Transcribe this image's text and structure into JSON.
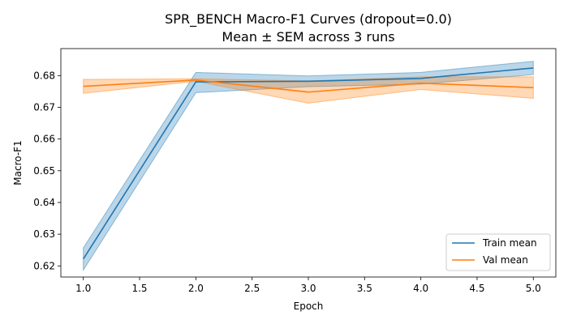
{
  "chart_data": {
    "type": "line",
    "title": "SPR_BENCH Macro-F1 Curves (dropout=0.0)",
    "subtitle": "Mean ± SEM across 3 runs",
    "xlabel": "Epoch",
    "ylabel": "Macro-F1",
    "xlim": [
      0.8,
      5.2
    ],
    "ylim": [
      0.6165,
      0.6885
    ],
    "xticks": [
      1.0,
      1.5,
      2.0,
      2.5,
      3.0,
      3.5,
      4.0,
      4.5,
      5.0
    ],
    "xtick_labels": [
      "1.0",
      "1.5",
      "2.0",
      "2.5",
      "3.0",
      "3.5",
      "4.0",
      "4.5",
      "5.0"
    ],
    "yticks": [
      0.62,
      0.63,
      0.64,
      0.65,
      0.66,
      0.67,
      0.68
    ],
    "ytick_labels": [
      "0.62",
      "0.63",
      "0.64",
      "0.65",
      "0.66",
      "0.67",
      "0.68"
    ],
    "grid": false,
    "legend_position": "bottom-right",
    "x": [
      1,
      2,
      3,
      4,
      5
    ],
    "series": [
      {
        "name": "Train mean",
        "color": "#1f77b4",
        "values": [
          0.6222,
          0.678,
          0.6782,
          0.6791,
          0.6824
        ],
        "lower": [
          0.6187,
          0.6746,
          0.6765,
          0.6773,
          0.6803
        ],
        "upper": [
          0.6257,
          0.681,
          0.6799,
          0.681,
          0.6845
        ]
      },
      {
        "name": "Val mean",
        "color": "#ff7f0e",
        "values": [
          0.6766,
          0.6786,
          0.6748,
          0.6776,
          0.6762
        ],
        "lower": [
          0.6744,
          0.6782,
          0.6713,
          0.6756,
          0.6728
        ],
        "upper": [
          0.6788,
          0.679,
          0.6783,
          0.6796,
          0.6796
        ]
      }
    ]
  }
}
